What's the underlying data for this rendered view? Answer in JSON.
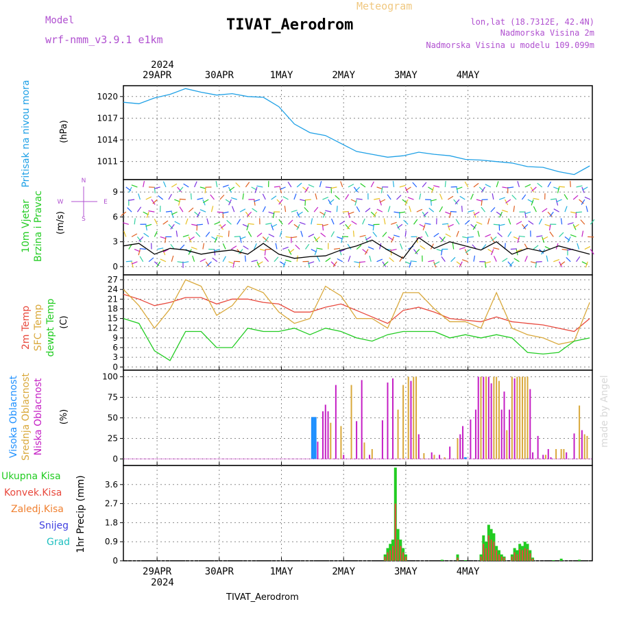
{
  "header": {
    "model_label": "Model",
    "model_name": "wrf-nmm_v3.9.1 e1km",
    "meteogram_label": "Meteogram",
    "station_title": "TIVAT_Aerodrom",
    "lonlat": "lon,lat (18.7312E, 42.4N)",
    "elevation": "Nadmorska Visina 2m",
    "model_elevation": "Nadmorska Visina u modelu 109.099m",
    "footer_station": "TIVAT_Aerodrom",
    "credit": "made by Angel"
  },
  "time_axis": {
    "year": "2024",
    "dates": [
      "29APR",
      "30APR",
      "1MAY",
      "2MAY",
      "3MAY",
      "4MAY"
    ]
  },
  "colors": {
    "pressure": "#1ea0e6",
    "temp2m": "#e8483c",
    "sfc_temp": "#d9a83a",
    "dewpoint": "#22cc22",
    "high_cloud": "#1e90ff",
    "mid_cloud": "#d9a83a",
    "low_cloud": "#c41ec4",
    "total_precip": "#22cc22",
    "conv_precip": "#e8483c",
    "frozen_precip": "#f08030",
    "snow": "#4040e0",
    "graupel": "#20c0c0"
  },
  "chart_data": [
    {
      "type": "line",
      "panel": "pressure",
      "ylabel": "Pritisak na nivou mora",
      "unit": "(hPa)",
      "yticks": [
        1011,
        1014,
        1017,
        1020
      ],
      "ylim": [
        1008.5,
        1021.5
      ],
      "x_hours": [
        0,
        6,
        12,
        18,
        24,
        30,
        36,
        42,
        48,
        54,
        60,
        66,
        72,
        78,
        84,
        90,
        96,
        102,
        108,
        114,
        120,
        126,
        132,
        138,
        144,
        150,
        156,
        162,
        168,
        174,
        180
      ],
      "series": [
        {
          "values": [
            1019.2,
            1019.0,
            1019.8,
            1020.3,
            1021.1,
            1020.6,
            1020.2,
            1020.4,
            1020.0,
            1019.9,
            1018.6,
            1016.2,
            1015.0,
            1014.6,
            1013.5,
            1012.4,
            1012.0,
            1011.6,
            1011.8,
            1012.3,
            1012.0,
            1011.8,
            1011.3,
            1011.2,
            1011.0,
            1010.8,
            1010.3,
            1010.2,
            1009.6,
            1009.2,
            1010.4
          ]
        }
      ]
    },
    {
      "type": "line",
      "panel": "wind",
      "ylabel": "10m Vjetar Brzina i Pravac",
      "unit": "(m/s)",
      "compass": [
        "N",
        "W",
        "E",
        "S"
      ],
      "yticks": [
        0,
        3,
        6,
        9
      ],
      "ylim": [
        -1,
        10.5
      ],
      "x_hours": [
        0,
        6,
        12,
        18,
        24,
        30,
        36,
        42,
        48,
        54,
        60,
        66,
        72,
        78,
        84,
        90,
        96,
        102,
        108,
        114,
        120,
        126,
        132,
        138,
        144,
        150,
        156,
        162,
        168,
        174,
        180
      ],
      "series": [
        {
          "values": [
            2.5,
            2.8,
            1.5,
            2.2,
            2.0,
            1.5,
            1.8,
            2.0,
            1.5,
            2.8,
            1.5,
            1.0,
            1.2,
            1.3,
            2.0,
            2.5,
            3.2,
            2.0,
            1.0,
            3.5,
            2.2,
            3.0,
            2.5,
            2.0,
            3.0,
            1.5,
            2.2,
            1.8,
            2.5,
            2.0,
            1.5
          ]
        }
      ]
    },
    {
      "type": "line",
      "panel": "temperature",
      "ylabel": "2m Temp",
      "ylabel2": "SFC Temp",
      "ylabel3": "dewpt Temp",
      "unit": "(C)",
      "yticks": [
        0,
        3,
        6,
        9,
        12,
        15,
        18,
        21,
        24,
        27
      ],
      "ylim": [
        -1,
        28.5
      ],
      "x_hours": [
        0,
        6,
        12,
        18,
        24,
        30,
        36,
        42,
        48,
        54,
        60,
        66,
        72,
        78,
        84,
        90,
        96,
        102,
        108,
        114,
        120,
        126,
        132,
        138,
        144,
        150,
        156,
        162,
        168,
        174,
        180
      ],
      "series": [
        {
          "name": "2m Temp",
          "values": [
            22.5,
            21.0,
            19.0,
            20.0,
            21.5,
            21.5,
            19.5,
            21.0,
            21.0,
            20.0,
            19.5,
            17.0,
            17.0,
            18.5,
            19.5,
            17.5,
            15.5,
            13.5,
            17.5,
            18.5,
            17.0,
            15.0,
            14.5,
            14.0,
            15.5,
            14.0,
            13.5,
            13.0,
            12.0,
            11.0,
            15.0
          ]
        },
        {
          "name": "SFC Temp",
          "values": [
            24.0,
            19.0,
            12.0,
            18.0,
            27.0,
            25.0,
            16.0,
            19.0,
            25.0,
            23.0,
            17.0,
            13.5,
            15.0,
            25.0,
            22.0,
            15.0,
            15.0,
            12.0,
            23.0,
            23.0,
            18.0,
            14.0,
            14.0,
            12.0,
            23.0,
            12.0,
            10.0,
            9.0,
            7.0,
            8.0,
            20.0
          ]
        },
        {
          "name": "dewpt Temp",
          "values": [
            15.0,
            13.5,
            5.0,
            2.0,
            11.0,
            11.0,
            6.0,
            6.0,
            12.0,
            11.0,
            11.0,
            12.0,
            10.0,
            12.0,
            11.0,
            9.0,
            8.0,
            10.0,
            11.0,
            11.0,
            11.0,
            9.0,
            10.0,
            9.0,
            10.0,
            9.0,
            4.5,
            4.0,
            4.5,
            8.0,
            9.0
          ]
        }
      ]
    },
    {
      "type": "bar",
      "panel": "clouds",
      "ylabel": "Visoka Oblacnost",
      "ylabel2": "Srednja Oblacnost",
      "ylabel3": "Niska Oblacnost",
      "unit": "(%)",
      "yticks": [
        0,
        25,
        50,
        75,
        100
      ],
      "ylim": [
        -8,
        108
      ],
      "series": [
        {
          "name": "Visoka Oblacnost",
          "points": [
            [
              73,
              51
            ],
            [
              74,
              51
            ],
            [
              132,
              2
            ],
            [
              156,
              1
            ]
          ]
        },
        {
          "name": "Srednja Oblacnost",
          "points": [
            [
              80,
              44
            ],
            [
              84,
              40
            ],
            [
              88,
              90
            ],
            [
              93,
              20
            ],
            [
              96,
              12
            ],
            [
              106,
              60
            ],
            [
              108,
              90
            ],
            [
              110,
              100
            ],
            [
              112,
              100
            ],
            [
              113,
              100
            ],
            [
              116,
              7
            ],
            [
              120,
              5
            ],
            [
              124,
              2
            ],
            [
              129,
              25
            ],
            [
              138,
              100
            ],
            [
              140,
              100
            ],
            [
              143,
              100
            ],
            [
              144,
              100
            ],
            [
              145,
              95
            ],
            [
              148,
              35
            ],
            [
              150,
              100
            ],
            [
              152,
              100
            ],
            [
              153,
              100
            ],
            [
              154,
              100
            ],
            [
              155,
              100
            ],
            [
              156,
              100
            ],
            [
              160,
              2
            ],
            [
              163,
              5
            ],
            [
              167,
              12
            ],
            [
              169,
              12
            ],
            [
              170,
              12
            ],
            [
              176,
              65
            ],
            [
              178,
              30
            ],
            [
              179,
              28
            ]
          ]
        },
        {
          "name": "Niska Oblacnost",
          "points": [
            [
              75,
              21
            ],
            [
              77,
              58
            ],
            [
              78,
              66
            ],
            [
              79,
              58
            ],
            [
              82,
              90
            ],
            [
              85,
              5
            ],
            [
              90,
              46
            ],
            [
              92,
              96
            ],
            [
              95,
              5
            ],
            [
              100,
              47
            ],
            [
              102,
              93
            ],
            [
              104,
              98
            ],
            [
              111,
              95
            ],
            [
              114,
              30
            ],
            [
              119,
              8
            ],
            [
              122,
              5
            ],
            [
              126,
              15
            ],
            [
              130,
              30
            ],
            [
              131,
              40
            ],
            [
              134,
              48
            ],
            [
              136,
              60
            ],
            [
              137,
              100
            ],
            [
              139,
              100
            ],
            [
              141,
              100
            ],
            [
              142,
              92
            ],
            [
              146,
              60
            ],
            [
              147,
              82
            ],
            [
              149,
              60
            ],
            [
              151,
              98
            ],
            [
              157,
              85
            ],
            [
              158,
              8
            ],
            [
              160,
              28
            ],
            [
              162,
              5
            ],
            [
              164,
              12
            ],
            [
              165,
              2
            ],
            [
              171,
              8
            ],
            [
              174,
              31
            ],
            [
              177,
              35
            ]
          ]
        }
      ]
    },
    {
      "type": "bar",
      "panel": "precipitation",
      "ylabel": "1hr Precip",
      "unit": "(mm)",
      "legend": [
        "Ukupna Kisa",
        "Konvek.Kisa",
        "Zaledj.Kisa",
        "Snijeg",
        "Grad"
      ],
      "yticks": [
        0,
        0.9,
        1.8,
        2.7,
        3.6
      ],
      "ylim": [
        0,
        4.5
      ],
      "series": [
        {
          "name": "Ukupna Kisa",
          "points": [
            [
              101,
              0.3
            ],
            [
              102,
              0.6
            ],
            [
              103,
              0.8
            ],
            [
              104,
              1.0
            ],
            [
              105,
              4.4
            ],
            [
              106,
              1.5
            ],
            [
              107,
              1.0
            ],
            [
              108,
              0.6
            ],
            [
              109,
              0.3
            ],
            [
              123,
              0.05
            ],
            [
              129,
              0.3
            ],
            [
              132,
              0.03
            ],
            [
              138,
              0.3
            ],
            [
              139,
              1.2
            ],
            [
              140,
              0.9
            ],
            [
              141,
              1.7
            ],
            [
              142,
              1.5
            ],
            [
              143,
              1.3
            ],
            [
              144,
              0.7
            ],
            [
              145,
              0.5
            ],
            [
              146,
              0.3
            ],
            [
              147,
              0.2
            ],
            [
              150,
              0.3
            ],
            [
              151,
              0.6
            ],
            [
              152,
              0.5
            ],
            [
              153,
              0.8
            ],
            [
              154,
              0.7
            ],
            [
              155,
              0.9
            ],
            [
              156,
              0.8
            ],
            [
              157,
              0.5
            ],
            [
              158,
              0.15
            ],
            [
              166,
              0.03
            ],
            [
              169,
              0.1
            ],
            [
              176,
              0.05
            ]
          ]
        },
        {
          "name": "Konvek.Kisa",
          "points": [
            [
              101,
              0.2
            ],
            [
              102,
              0.4
            ],
            [
              103,
              0.5
            ],
            [
              104,
              0.7
            ],
            [
              105,
              2.7
            ],
            [
              106,
              1.0
            ],
            [
              107,
              0.7
            ],
            [
              108,
              0.4
            ],
            [
              109,
              0.2
            ],
            [
              129,
              0.15
            ],
            [
              138,
              0.2
            ],
            [
              139,
              0.8
            ],
            [
              140,
              0.6
            ],
            [
              141,
              1.2
            ],
            [
              142,
              1.0
            ],
            [
              143,
              0.9
            ],
            [
              144,
              0.5
            ],
            [
              145,
              0.3
            ],
            [
              146,
              0.2
            ],
            [
              147,
              0.15
            ],
            [
              150,
              0.2
            ],
            [
              151,
              0.4
            ],
            [
              152,
              0.3
            ],
            [
              153,
              0.55
            ],
            [
              154,
              0.5
            ],
            [
              155,
              0.6
            ],
            [
              156,
              0.55
            ],
            [
              157,
              0.35
            ],
            [
              158,
              0.1
            ]
          ]
        }
      ]
    }
  ]
}
